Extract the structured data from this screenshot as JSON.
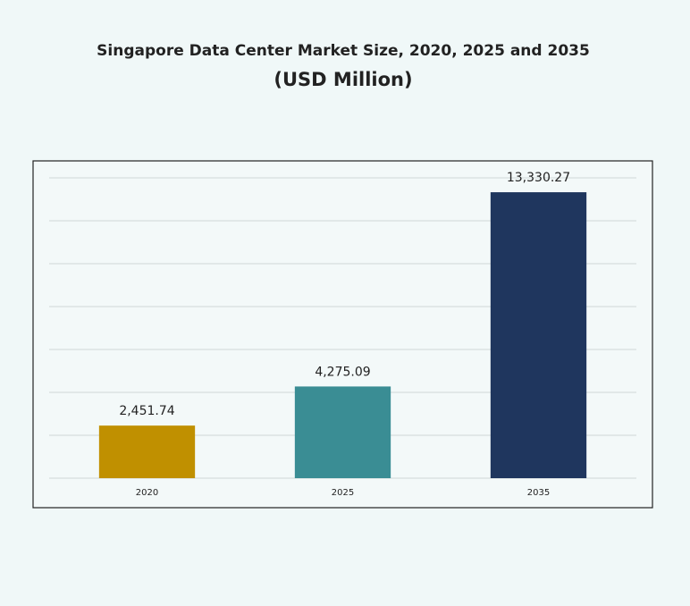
{
  "chart_data": {
    "type": "bar",
    "title": "Singapore Data Center Market Size, 2020, 2025 and 2035",
    "subtitle": "(USD Million)",
    "categories": [
      "2020",
      "2025",
      "2035"
    ],
    "values": [
      2451.74,
      4275.09,
      13330.27
    ],
    "value_labels": [
      "2,451.74",
      "4,275.09",
      "13,330.27"
    ],
    "colors": [
      "#c09000",
      "#3a8d94",
      "#1f365e"
    ],
    "ylim": [
      0,
      14000
    ],
    "yticks": [
      0,
      2000,
      4000,
      6000,
      8000,
      10000,
      12000,
      14000
    ],
    "grid": true
  }
}
